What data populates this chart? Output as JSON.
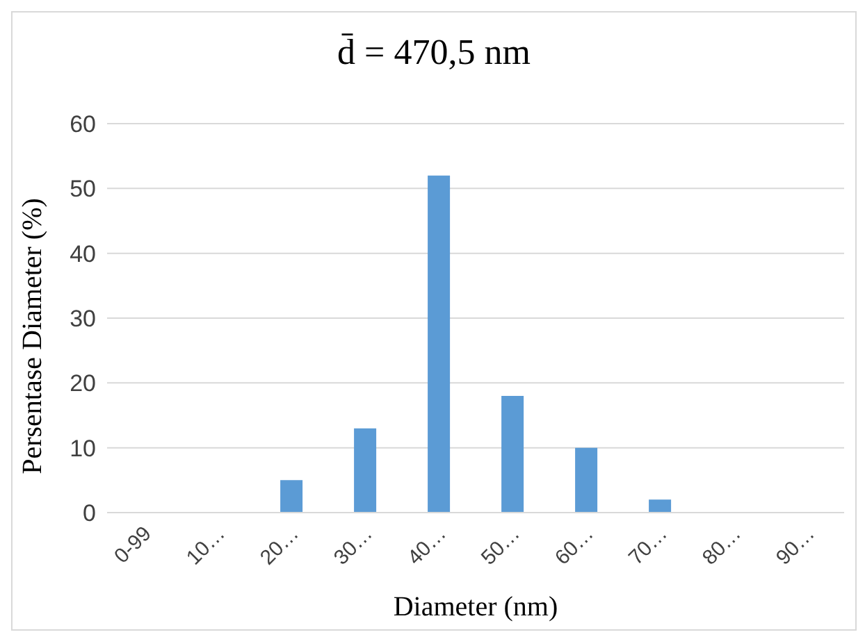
{
  "chart_data": {
    "type": "bar",
    "title": "d̄ = 470,5 nm",
    "xlabel": "Diameter (nm)",
    "ylabel": "Persentase Diameter (%)",
    "categories": [
      "0-99",
      "10…",
      "20…",
      "30…",
      "40…",
      "50…",
      "60…",
      "70…",
      "80…",
      "90…"
    ],
    "values": [
      0,
      0,
      5,
      13,
      52,
      18,
      10,
      2,
      0,
      0
    ],
    "color": "#5b9bd5",
    "ylim": [
      0,
      60
    ],
    "yticks": [
      0,
      10,
      20,
      30,
      40,
      50,
      60
    ],
    "grid": "y"
  }
}
